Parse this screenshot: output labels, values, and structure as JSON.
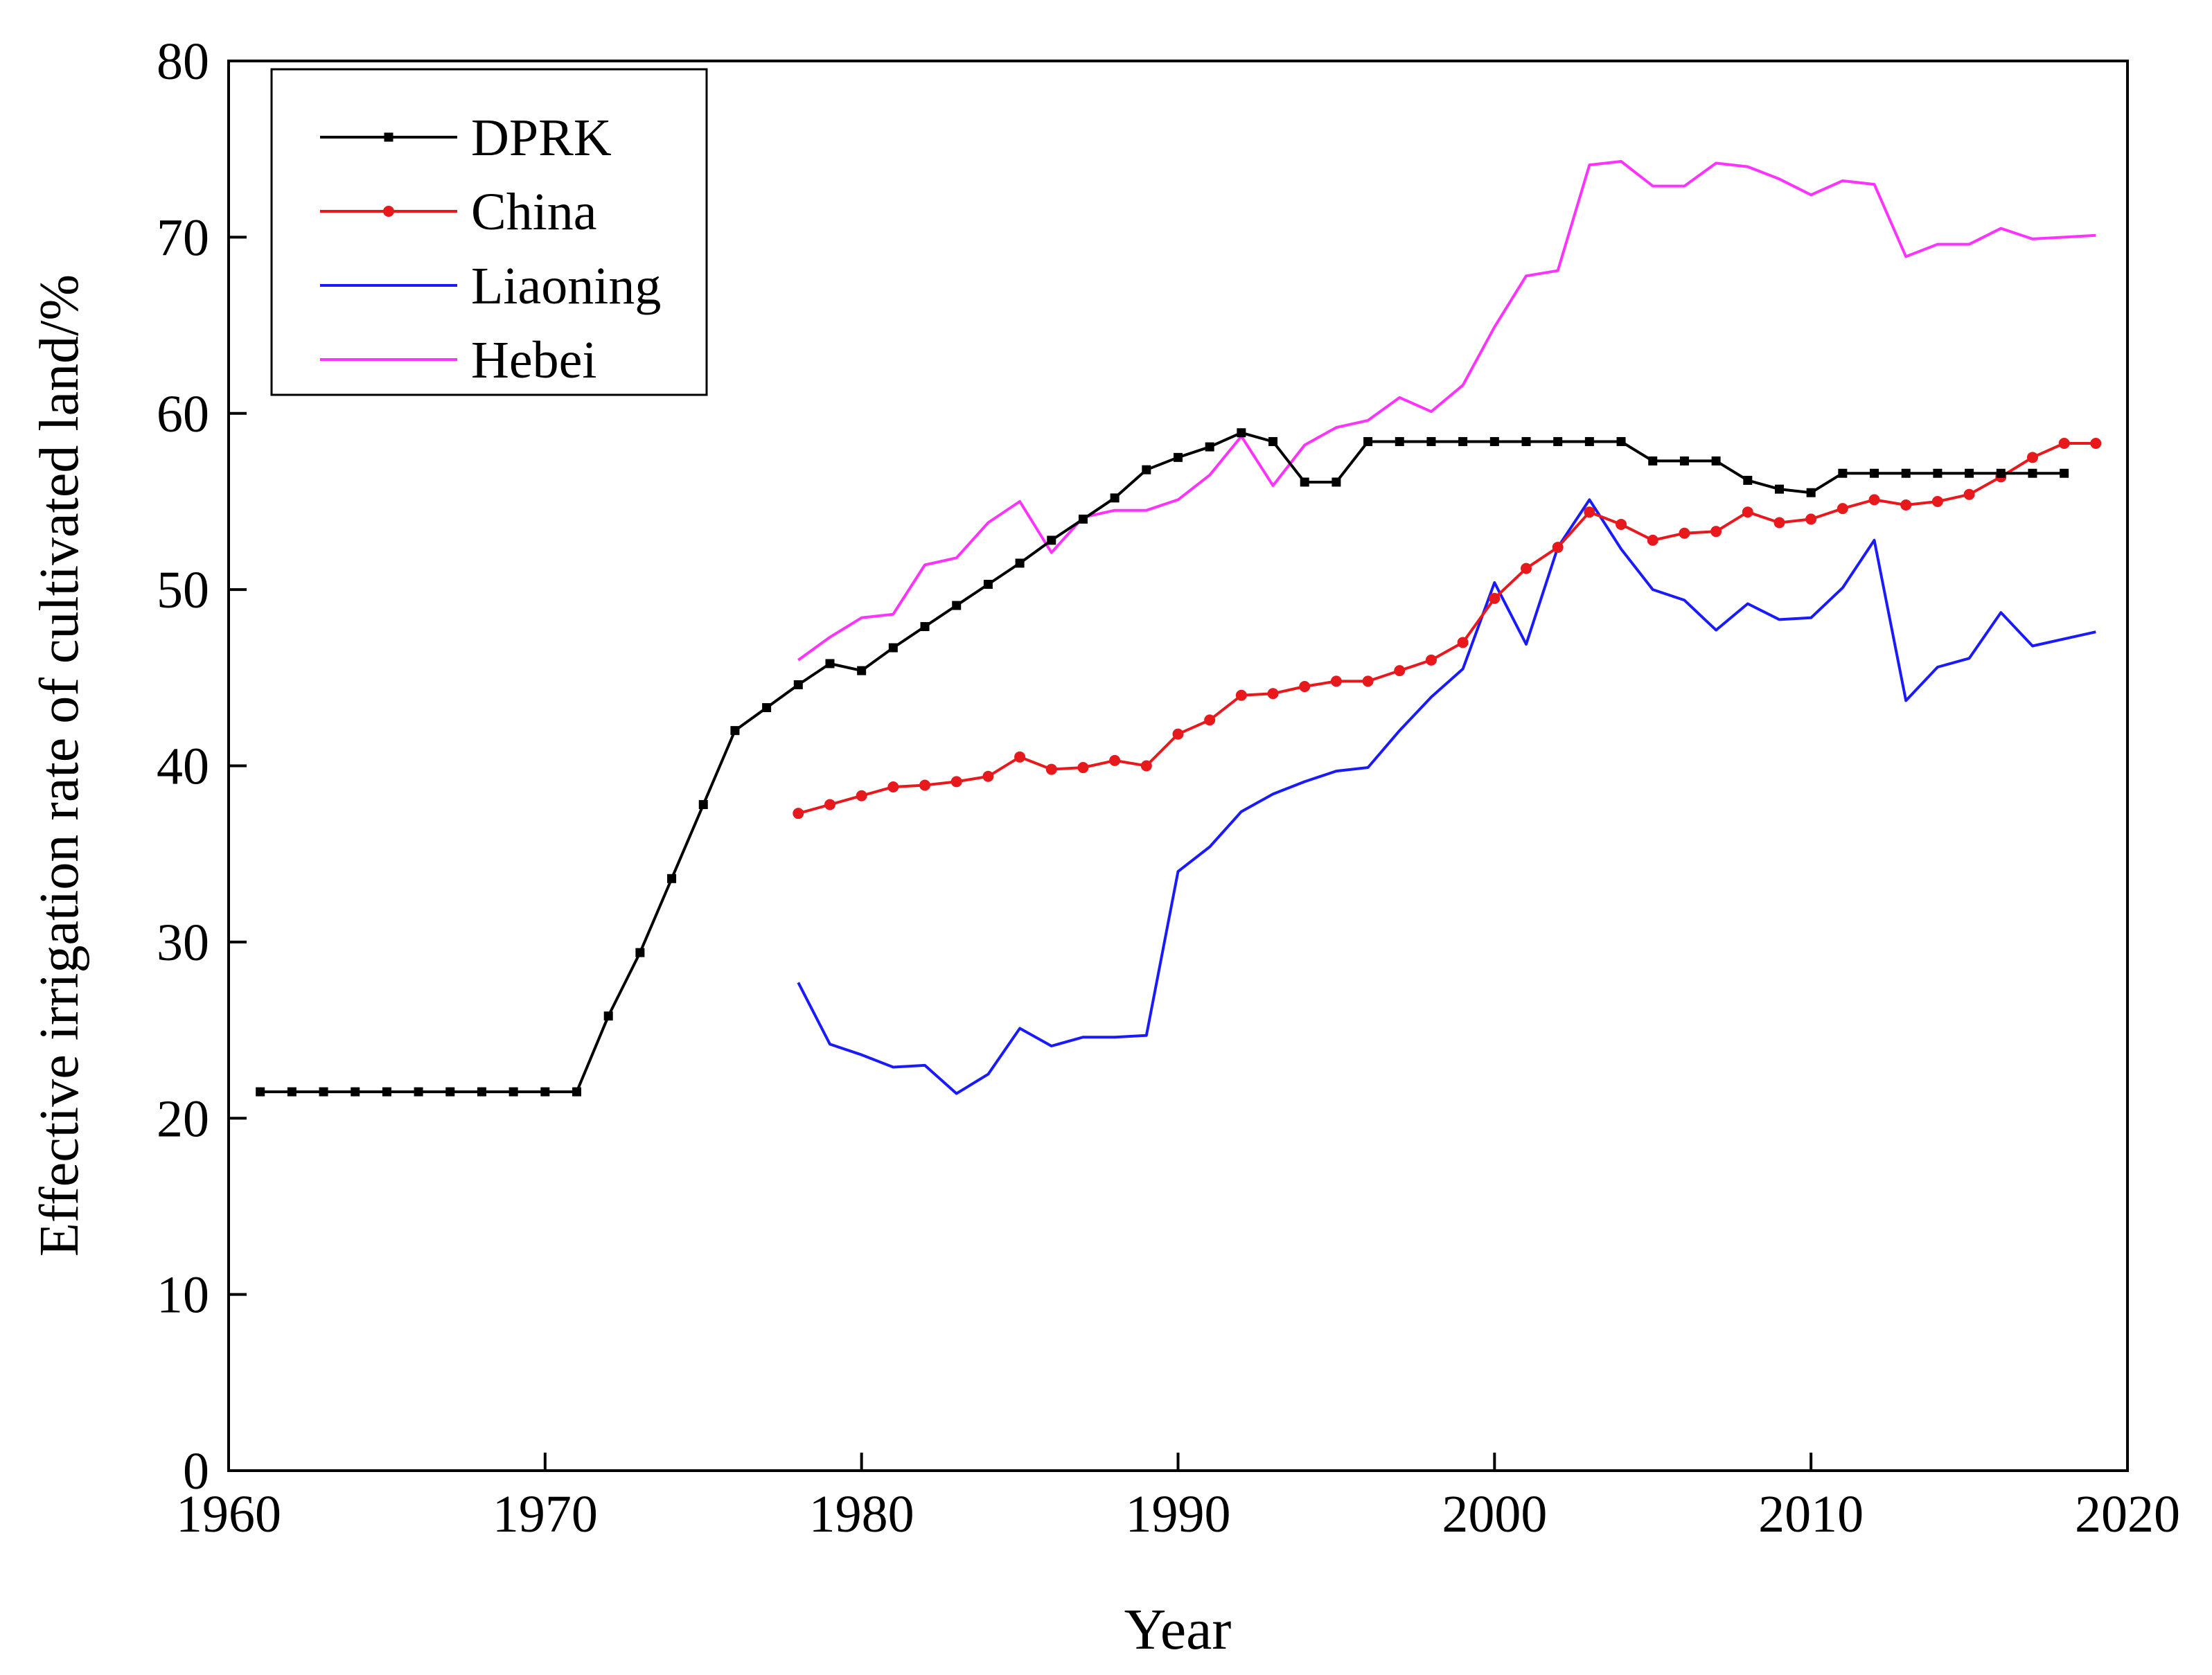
{
  "chart_data": {
    "type": "line",
    "title": "",
    "xlabel": "Year",
    "ylabel": "Effective irrigation rate of cultivated land/%",
    "xlim": [
      1960,
      2020
    ],
    "ylim": [
      0,
      80
    ],
    "xticks": [
      1960,
      1970,
      1980,
      1990,
      2000,
      2010,
      2020
    ],
    "yticks": [
      0,
      10,
      20,
      30,
      40,
      50,
      60,
      70,
      80
    ],
    "legend_position": "top-left",
    "series": [
      {
        "name": "DPRK",
        "color": "#000000",
        "marker": "square",
        "x": [
          1961,
          1962,
          1963,
          1964,
          1965,
          1966,
          1967,
          1968,
          1969,
          1970,
          1971,
          1972,
          1973,
          1974,
          1975,
          1976,
          1977,
          1978,
          1979,
          1980,
          1981,
          1982,
          1983,
          1984,
          1985,
          1986,
          1987,
          1988,
          1989,
          1990,
          1991,
          1992,
          1993,
          1994,
          1995,
          1996,
          1997,
          1998,
          1999,
          2000,
          2001,
          2002,
          2003,
          2004,
          2005,
          2006,
          2007,
          2008,
          2009,
          2010,
          2011,
          2012,
          2013,
          2014,
          2015,
          2016,
          2017,
          2018
        ],
        "y": [
          21.5,
          21.5,
          21.5,
          21.5,
          21.5,
          21.5,
          21.5,
          21.5,
          21.5,
          21.5,
          21.5,
          25.8,
          29.4,
          33.6,
          37.8,
          42.0,
          43.3,
          44.6,
          45.8,
          45.4,
          46.7,
          47.9,
          49.1,
          50.3,
          51.5,
          52.8,
          54.0,
          55.2,
          56.8,
          57.5,
          58.1,
          58.9,
          58.4,
          56.1,
          56.1,
          58.4,
          58.4,
          58.4,
          58.4,
          58.4,
          58.4,
          58.4,
          58.4,
          58.4,
          57.3,
          57.3,
          57.3,
          56.2,
          55.7,
          55.5,
          56.6,
          56.6,
          56.6,
          56.6,
          56.6,
          56.6,
          56.6,
          56.6
        ]
      },
      {
        "name": "China",
        "color": "#e8191c",
        "marker": "circle",
        "x": [
          1978,
          1979,
          1980,
          1981,
          1982,
          1983,
          1984,
          1985,
          1986,
          1987,
          1988,
          1989,
          1990,
          1991,
          1992,
          1993,
          1994,
          1995,
          1996,
          1997,
          1998,
          1999,
          2000,
          2001,
          2002,
          2003,
          2004,
          2005,
          2006,
          2007,
          2008,
          2009,
          2010,
          2011,
          2012,
          2013,
          2014,
          2015,
          2016,
          2017,
          2018,
          2019
        ],
        "y": [
          37.3,
          37.8,
          38.3,
          38.8,
          38.9,
          39.1,
          39.4,
          40.5,
          39.8,
          39.9,
          40.3,
          40.0,
          41.8,
          42.6,
          44.0,
          44.1,
          44.5,
          44.8,
          44.8,
          45.4,
          46.0,
          47.0,
          49.5,
          51.2,
          52.4,
          54.4,
          53.7,
          52.8,
          53.2,
          53.3,
          54.4,
          53.8,
          54.0,
          54.6,
          55.1,
          54.8,
          55.0,
          55.4,
          56.4,
          57.5,
          58.3,
          58.3
        ]
      },
      {
        "name": "Liaoning",
        "color": "#1a1aff",
        "marker": "none",
        "x": [
          1978,
          1979,
          1980,
          1981,
          1982,
          1983,
          1984,
          1985,
          1986,
          1987,
          1988,
          1989,
          1990,
          1991,
          1992,
          1993,
          1994,
          1995,
          1996,
          1997,
          1998,
          1999,
          2000,
          2001,
          2002,
          2003,
          2004,
          2005,
          2006,
          2007,
          2008,
          2009,
          2010,
          2011,
          2012,
          2013,
          2014,
          2015,
          2016,
          2017,
          2018,
          2019
        ],
        "y": [
          27.7,
          24.2,
          23.6,
          22.9,
          23.0,
          21.4,
          22.5,
          25.1,
          24.1,
          24.6,
          24.6,
          24.7,
          34.0,
          35.4,
          37.4,
          38.4,
          39.1,
          39.7,
          39.9,
          42.0,
          43.9,
          45.5,
          50.4,
          46.9,
          52.4,
          55.1,
          52.3,
          50.0,
          49.4,
          47.7,
          49.2,
          48.3,
          48.4,
          50.1,
          52.8,
          43.7,
          45.6,
          46.1,
          48.7,
          46.8,
          47.2,
          47.6
        ]
      },
      {
        "name": "Hebei",
        "color": "#ff33ff",
        "marker": "none",
        "x": [
          1978,
          1979,
          1980,
          1981,
          1982,
          1983,
          1984,
          1985,
          1986,
          1987,
          1988,
          1989,
          1990,
          1991,
          1992,
          1993,
          1994,
          1995,
          1996,
          1997,
          1998,
          1999,
          2000,
          2001,
          2002,
          2003,
          2004,
          2005,
          2006,
          2007,
          2008,
          2009,
          2010,
          2011,
          2012,
          2013,
          2014,
          2015,
          2016,
          2017,
          2018,
          2019
        ],
        "y": [
          46.0,
          47.3,
          48.4,
          48.6,
          51.4,
          51.8,
          53.8,
          55.0,
          52.1,
          54.1,
          54.5,
          54.5,
          55.1,
          56.5,
          58.7,
          55.9,
          58.2,
          59.2,
          59.6,
          60.9,
          60.1,
          61.6,
          64.9,
          67.8,
          68.1,
          74.1,
          74.3,
          72.9,
          72.9,
          74.2,
          74.0,
          73.3,
          72.4,
          73.2,
          73.0,
          68.9,
          69.6,
          69.6,
          70.5,
          69.9,
          70.0,
          70.1
        ]
      }
    ]
  }
}
